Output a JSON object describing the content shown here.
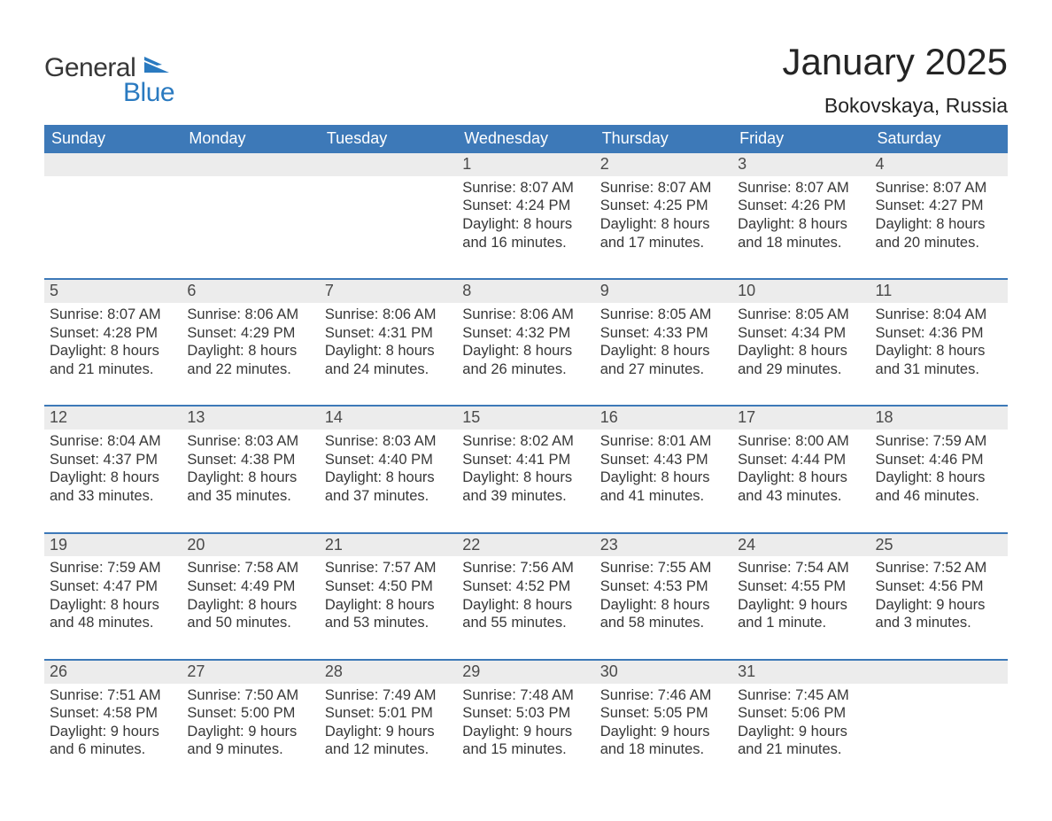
{
  "brand": {
    "general": "General",
    "blue": "Blue",
    "accent": "#2a7ac0",
    "text": "#373737"
  },
  "title": "January 2025",
  "location": "Bokovskaya, Russia",
  "colors": {
    "header_bg": "#3d79b8",
    "header_text": "#ffffff",
    "daynum_bg": "#ececec",
    "daynum_text": "#4a4a4a",
    "body_text": "#373737",
    "week_border": "#3d79b8",
    "page_bg": "#ffffff"
  },
  "typography": {
    "title_fontsize": 42,
    "subtitle_fontsize": 23,
    "header_fontsize": 18,
    "daynum_fontsize": 18,
    "body_fontsize": 16.5,
    "font_family": "Arial"
  },
  "day_headers": [
    "Sunday",
    "Monday",
    "Tuesday",
    "Wednesday",
    "Thursday",
    "Friday",
    "Saturday"
  ],
  "weeks": [
    [
      {
        "n": "",
        "sunrise": "",
        "sunset": "",
        "daylight1": "",
        "daylight2": ""
      },
      {
        "n": "",
        "sunrise": "",
        "sunset": "",
        "daylight1": "",
        "daylight2": ""
      },
      {
        "n": "",
        "sunrise": "",
        "sunset": "",
        "daylight1": "",
        "daylight2": ""
      },
      {
        "n": "1",
        "sunrise": "Sunrise: 8:07 AM",
        "sunset": "Sunset: 4:24 PM",
        "daylight1": "Daylight: 8 hours",
        "daylight2": "and 16 minutes."
      },
      {
        "n": "2",
        "sunrise": "Sunrise: 8:07 AM",
        "sunset": "Sunset: 4:25 PM",
        "daylight1": "Daylight: 8 hours",
        "daylight2": "and 17 minutes."
      },
      {
        "n": "3",
        "sunrise": "Sunrise: 8:07 AM",
        "sunset": "Sunset: 4:26 PM",
        "daylight1": "Daylight: 8 hours",
        "daylight2": "and 18 minutes."
      },
      {
        "n": "4",
        "sunrise": "Sunrise: 8:07 AM",
        "sunset": "Sunset: 4:27 PM",
        "daylight1": "Daylight: 8 hours",
        "daylight2": "and 20 minutes."
      }
    ],
    [
      {
        "n": "5",
        "sunrise": "Sunrise: 8:07 AM",
        "sunset": "Sunset: 4:28 PM",
        "daylight1": "Daylight: 8 hours",
        "daylight2": "and 21 minutes."
      },
      {
        "n": "6",
        "sunrise": "Sunrise: 8:06 AM",
        "sunset": "Sunset: 4:29 PM",
        "daylight1": "Daylight: 8 hours",
        "daylight2": "and 22 minutes."
      },
      {
        "n": "7",
        "sunrise": "Sunrise: 8:06 AM",
        "sunset": "Sunset: 4:31 PM",
        "daylight1": "Daylight: 8 hours",
        "daylight2": "and 24 minutes."
      },
      {
        "n": "8",
        "sunrise": "Sunrise: 8:06 AM",
        "sunset": "Sunset: 4:32 PM",
        "daylight1": "Daylight: 8 hours",
        "daylight2": "and 26 minutes."
      },
      {
        "n": "9",
        "sunrise": "Sunrise: 8:05 AM",
        "sunset": "Sunset: 4:33 PM",
        "daylight1": "Daylight: 8 hours",
        "daylight2": "and 27 minutes."
      },
      {
        "n": "10",
        "sunrise": "Sunrise: 8:05 AM",
        "sunset": "Sunset: 4:34 PM",
        "daylight1": "Daylight: 8 hours",
        "daylight2": "and 29 minutes."
      },
      {
        "n": "11",
        "sunrise": "Sunrise: 8:04 AM",
        "sunset": "Sunset: 4:36 PM",
        "daylight1": "Daylight: 8 hours",
        "daylight2": "and 31 minutes."
      }
    ],
    [
      {
        "n": "12",
        "sunrise": "Sunrise: 8:04 AM",
        "sunset": "Sunset: 4:37 PM",
        "daylight1": "Daylight: 8 hours",
        "daylight2": "and 33 minutes."
      },
      {
        "n": "13",
        "sunrise": "Sunrise: 8:03 AM",
        "sunset": "Sunset: 4:38 PM",
        "daylight1": "Daylight: 8 hours",
        "daylight2": "and 35 minutes."
      },
      {
        "n": "14",
        "sunrise": "Sunrise: 8:03 AM",
        "sunset": "Sunset: 4:40 PM",
        "daylight1": "Daylight: 8 hours",
        "daylight2": "and 37 minutes."
      },
      {
        "n": "15",
        "sunrise": "Sunrise: 8:02 AM",
        "sunset": "Sunset: 4:41 PM",
        "daylight1": "Daylight: 8 hours",
        "daylight2": "and 39 minutes."
      },
      {
        "n": "16",
        "sunrise": "Sunrise: 8:01 AM",
        "sunset": "Sunset: 4:43 PM",
        "daylight1": "Daylight: 8 hours",
        "daylight2": "and 41 minutes."
      },
      {
        "n": "17",
        "sunrise": "Sunrise: 8:00 AM",
        "sunset": "Sunset: 4:44 PM",
        "daylight1": "Daylight: 8 hours",
        "daylight2": "and 43 minutes."
      },
      {
        "n": "18",
        "sunrise": "Sunrise: 7:59 AM",
        "sunset": "Sunset: 4:46 PM",
        "daylight1": "Daylight: 8 hours",
        "daylight2": "and 46 minutes."
      }
    ],
    [
      {
        "n": "19",
        "sunrise": "Sunrise: 7:59 AM",
        "sunset": "Sunset: 4:47 PM",
        "daylight1": "Daylight: 8 hours",
        "daylight2": "and 48 minutes."
      },
      {
        "n": "20",
        "sunrise": "Sunrise: 7:58 AM",
        "sunset": "Sunset: 4:49 PM",
        "daylight1": "Daylight: 8 hours",
        "daylight2": "and 50 minutes."
      },
      {
        "n": "21",
        "sunrise": "Sunrise: 7:57 AM",
        "sunset": "Sunset: 4:50 PM",
        "daylight1": "Daylight: 8 hours",
        "daylight2": "and 53 minutes."
      },
      {
        "n": "22",
        "sunrise": "Sunrise: 7:56 AM",
        "sunset": "Sunset: 4:52 PM",
        "daylight1": "Daylight: 8 hours",
        "daylight2": "and 55 minutes."
      },
      {
        "n": "23",
        "sunrise": "Sunrise: 7:55 AM",
        "sunset": "Sunset: 4:53 PM",
        "daylight1": "Daylight: 8 hours",
        "daylight2": "and 58 minutes."
      },
      {
        "n": "24",
        "sunrise": "Sunrise: 7:54 AM",
        "sunset": "Sunset: 4:55 PM",
        "daylight1": "Daylight: 9 hours",
        "daylight2": "and 1 minute."
      },
      {
        "n": "25",
        "sunrise": "Sunrise: 7:52 AM",
        "sunset": "Sunset: 4:56 PM",
        "daylight1": "Daylight: 9 hours",
        "daylight2": "and 3 minutes."
      }
    ],
    [
      {
        "n": "26",
        "sunrise": "Sunrise: 7:51 AM",
        "sunset": "Sunset: 4:58 PM",
        "daylight1": "Daylight: 9 hours",
        "daylight2": "and 6 minutes."
      },
      {
        "n": "27",
        "sunrise": "Sunrise: 7:50 AM",
        "sunset": "Sunset: 5:00 PM",
        "daylight1": "Daylight: 9 hours",
        "daylight2": "and 9 minutes."
      },
      {
        "n": "28",
        "sunrise": "Sunrise: 7:49 AM",
        "sunset": "Sunset: 5:01 PM",
        "daylight1": "Daylight: 9 hours",
        "daylight2": "and 12 minutes."
      },
      {
        "n": "29",
        "sunrise": "Sunrise: 7:48 AM",
        "sunset": "Sunset: 5:03 PM",
        "daylight1": "Daylight: 9 hours",
        "daylight2": "and 15 minutes."
      },
      {
        "n": "30",
        "sunrise": "Sunrise: 7:46 AM",
        "sunset": "Sunset: 5:05 PM",
        "daylight1": "Daylight: 9 hours",
        "daylight2": "and 18 minutes."
      },
      {
        "n": "31",
        "sunrise": "Sunrise: 7:45 AM",
        "sunset": "Sunset: 5:06 PM",
        "daylight1": "Daylight: 9 hours",
        "daylight2": "and 21 minutes."
      },
      {
        "n": "",
        "sunrise": "",
        "sunset": "",
        "daylight1": "",
        "daylight2": ""
      }
    ]
  ]
}
